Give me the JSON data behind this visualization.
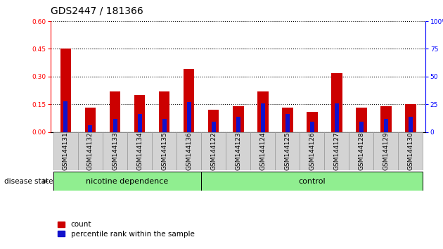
{
  "title": "GDS2447 / 181366",
  "samples": [
    "GSM144131",
    "GSM144132",
    "GSM144133",
    "GSM144134",
    "GSM144135",
    "GSM144136",
    "GSM144122",
    "GSM144123",
    "GSM144124",
    "GSM144125",
    "GSM144126",
    "GSM144127",
    "GSM144128",
    "GSM144129",
    "GSM144130"
  ],
  "count_values": [
    0.45,
    0.13,
    0.22,
    0.2,
    0.22,
    0.34,
    0.12,
    0.14,
    0.22,
    0.13,
    0.11,
    0.32,
    0.13,
    0.14,
    0.15
  ],
  "percentile_values": [
    28,
    6,
    12,
    16,
    12,
    27,
    9,
    14,
    26,
    16,
    9,
    26,
    9,
    12,
    14
  ],
  "groups": [
    {
      "label": "nicotine dependence",
      "start": 0,
      "end": 6,
      "color": "#90EE90"
    },
    {
      "label": "control",
      "start": 6,
      "end": 15,
      "color": "#90EE90"
    }
  ],
  "group_divider": 6,
  "left_ylim": [
    0,
    0.6
  ],
  "left_yticks": [
    0,
    0.15,
    0.3,
    0.45,
    0.6
  ],
  "right_ylim": [
    0,
    100
  ],
  "right_yticks": [
    0,
    25,
    50,
    75,
    100
  ],
  "bar_color": "#CC0000",
  "percentile_color": "#1111CC",
  "bar_width": 0.45,
  "grid_color": "black",
  "disease_state_label": "disease state",
  "legend_count": "count",
  "legend_percentile": "percentile rank within the sample",
  "title_fontsize": 10,
  "tick_fontsize": 6.5,
  "label_fontsize": 8
}
